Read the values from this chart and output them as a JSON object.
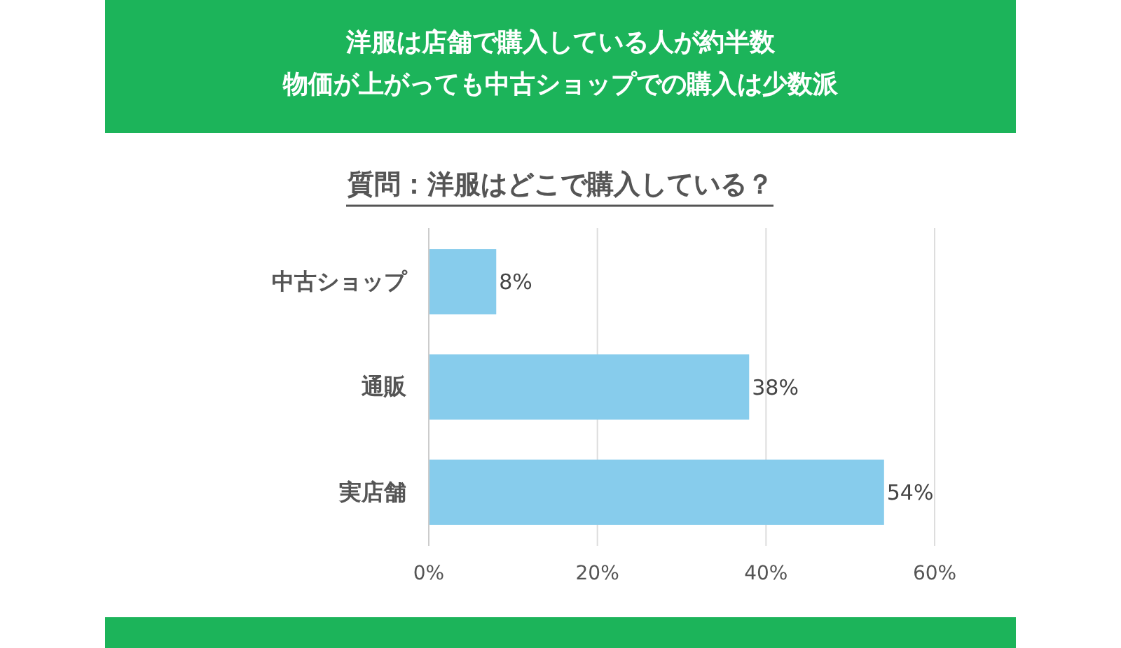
{
  "chart_data": {
    "type": "bar",
    "orientation": "horizontal",
    "title": "洋服は店舗で購入している人が約半数",
    "subtitle": "物価が上がっても中古ショップでの購入は少数派",
    "annotations": [
      "質問：洋服はどこで購入している？"
    ],
    "categories": [
      "中古ショップ",
      "通販",
      "実店舗"
    ],
    "values": [
      8,
      38,
      54
    ],
    "value_labels": [
      "8%",
      "38%",
      "54%"
    ],
    "color": "#87ccec",
    "xlim": [
      0,
      60
    ],
    "xticks": [
      {
        "value": 0,
        "label": "0%"
      },
      {
        "value": 20,
        "label": "20%"
      },
      {
        "value": 40,
        "label": "40%"
      },
      {
        "value": 60,
        "label": "60%"
      }
    ],
    "grid": "x"
  }
}
